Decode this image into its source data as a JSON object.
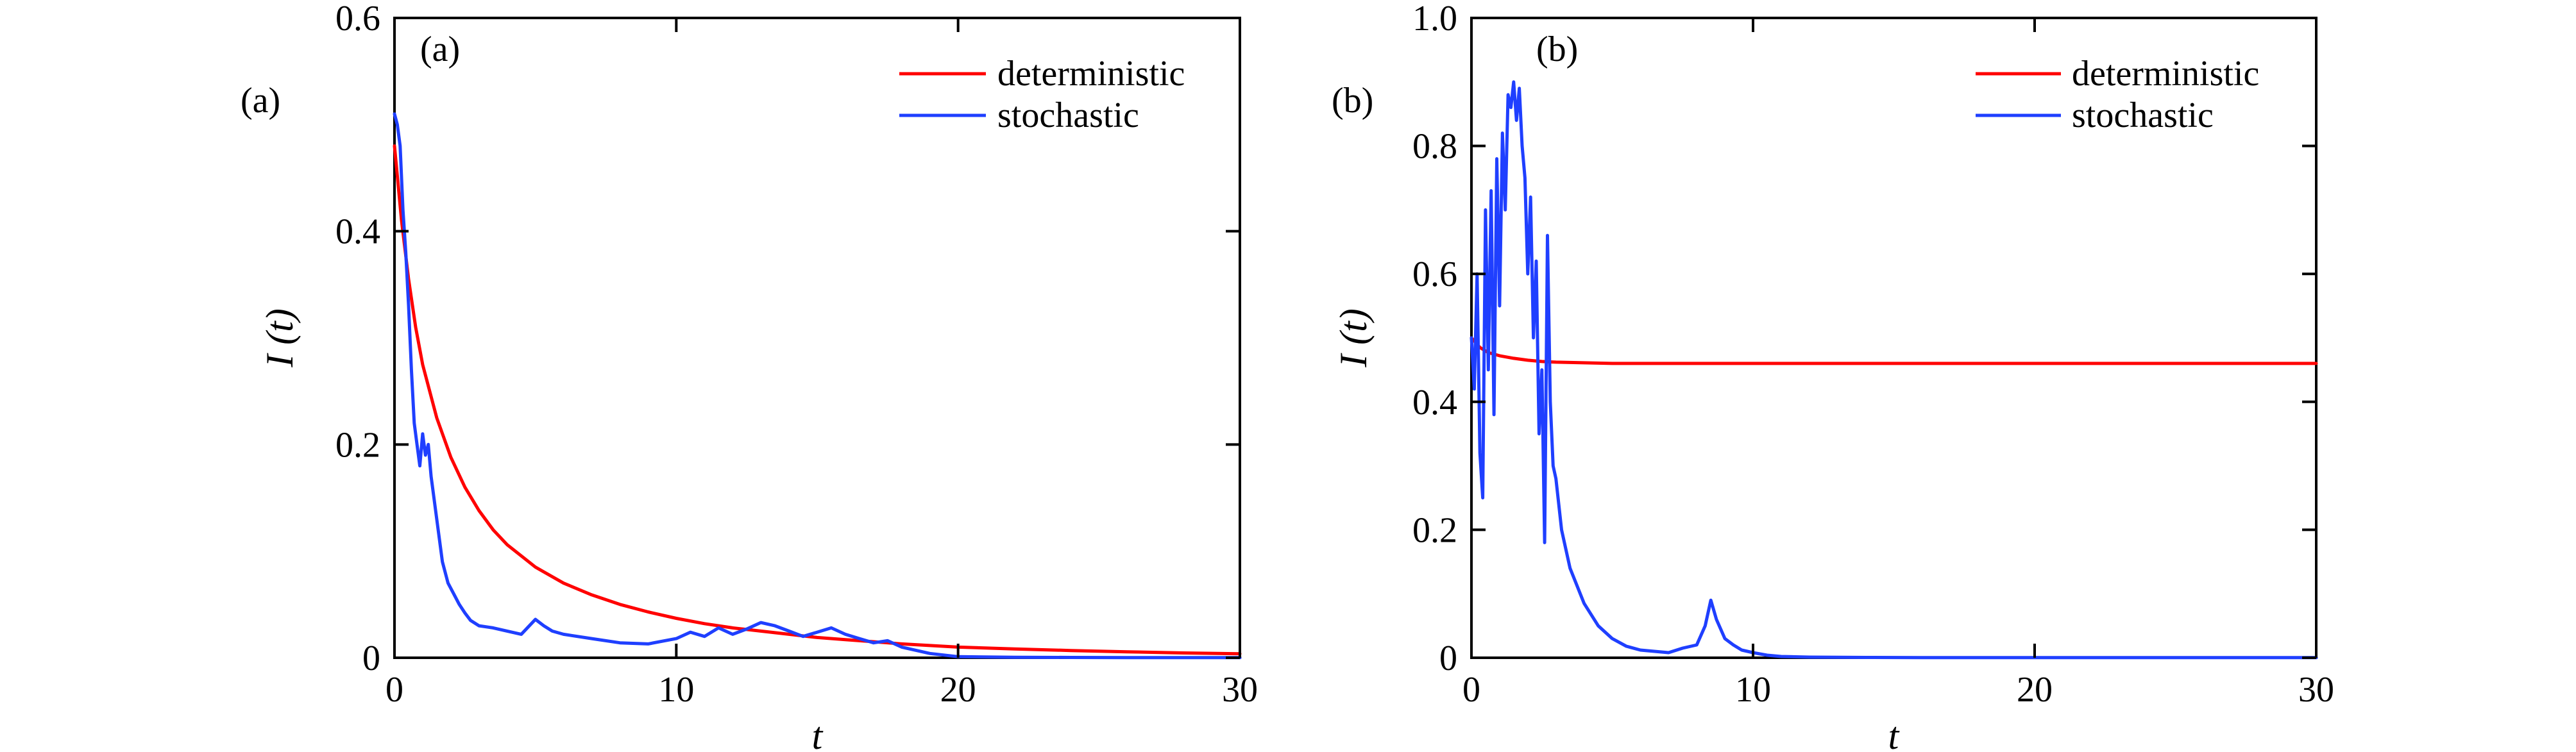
{
  "chart_data": [
    {
      "type": "line",
      "panel_label": "(a)",
      "inner_label": "(a)",
      "xlabel": "t",
      "ylabel": "I (t)",
      "xlim": [
        0,
        30
      ],
      "ylim": [
        0,
        0.6
      ],
      "xticks": [
        0,
        10,
        20,
        30
      ],
      "xtick_labels": [
        "0",
        "10",
        "20",
        "30"
      ],
      "yticks": [
        0,
        0.2,
        0.4,
        0.6
      ],
      "ytick_labels": [
        "0",
        "0.2",
        "0.4",
        "0.6"
      ],
      "legend_position": "top-right",
      "series": [
        {
          "name": "deterministic",
          "color": "#ff0000",
          "x": [
            0,
            0.25,
            0.5,
            0.75,
            1,
            1.5,
            2,
            2.5,
            3,
            3.5,
            4,
            5,
            6,
            7,
            8,
            9,
            10,
            11,
            12,
            13,
            14,
            15,
            16,
            17,
            18,
            19,
            20,
            22,
            24,
            26,
            28,
            30
          ],
          "y": [
            0.48,
            0.41,
            0.355,
            0.31,
            0.275,
            0.225,
            0.188,
            0.16,
            0.138,
            0.12,
            0.106,
            0.085,
            0.07,
            0.059,
            0.05,
            0.043,
            0.037,
            0.032,
            0.028,
            0.025,
            0.022,
            0.019,
            0.017,
            0.015,
            0.013,
            0.0115,
            0.01,
            0.0083,
            0.0068,
            0.0056,
            0.0045,
            0.0037
          ]
        },
        {
          "name": "stochastic",
          "color": "#1f3fff",
          "x": [
            0,
            0.1,
            0.2,
            0.3,
            0.4,
            0.5,
            0.6,
            0.7,
            0.8,
            0.9,
            1,
            1.1,
            1.2,
            1.3,
            1.5,
            1.7,
            1.9,
            2.1,
            2.3,
            2.5,
            2.7,
            3,
            3.5,
            4,
            4.5,
            5,
            5.3,
            5.6,
            6,
            7,
            8,
            9,
            10,
            10.5,
            11,
            11.5,
            12,
            12.5,
            13,
            13.5,
            14,
            14.5,
            15,
            15.5,
            16,
            16.5,
            17,
            17.5,
            18,
            19,
            20,
            22,
            24,
            26,
            28,
            30
          ],
          "y": [
            0.51,
            0.5,
            0.48,
            0.42,
            0.38,
            0.33,
            0.27,
            0.22,
            0.2,
            0.18,
            0.21,
            0.19,
            0.2,
            0.17,
            0.13,
            0.09,
            0.07,
            0.06,
            0.05,
            0.042,
            0.035,
            0.03,
            0.028,
            0.025,
            0.022,
            0.036,
            0.03,
            0.025,
            0.022,
            0.018,
            0.014,
            0.013,
            0.018,
            0.024,
            0.02,
            0.028,
            0.022,
            0.027,
            0.033,
            0.03,
            0.025,
            0.02,
            0.024,
            0.028,
            0.022,
            0.018,
            0.014,
            0.016,
            0.01,
            0.004,
            0.001,
            0.0005,
            0.0003,
            0.0002,
            0.0002,
            0.0002
          ]
        }
      ]
    },
    {
      "type": "line",
      "panel_label": "(b)",
      "inner_label": "(b)",
      "xlabel": "t",
      "ylabel": "I (t)",
      "xlim": [
        0,
        30
      ],
      "ylim": [
        0,
        1.0
      ],
      "xticks": [
        0,
        10,
        20,
        30
      ],
      "xtick_labels": [
        "0",
        "10",
        "20",
        "30"
      ],
      "yticks": [
        0,
        0.2,
        0.4,
        0.6,
        0.8,
        1.0
      ],
      "ytick_labels": [
        "0",
        "0.2",
        "0.4",
        "0.6",
        "0.8",
        "1.0"
      ],
      "legend_position": "top-right",
      "series": [
        {
          "name": "deterministic",
          "color": "#ff0000",
          "x": [
            0,
            0.3,
            0.6,
            1,
            1.5,
            2,
            2.5,
            3,
            4,
            5,
            10,
            20,
            30
          ],
          "y": [
            0.5,
            0.485,
            0.477,
            0.472,
            0.468,
            0.465,
            0.463,
            0.462,
            0.461,
            0.46,
            0.46,
            0.46,
            0.46
          ]
        },
        {
          "name": "stochastic",
          "color": "#1f3fff",
          "x": [
            0,
            0.1,
            0.2,
            0.3,
            0.4,
            0.5,
            0.6,
            0.7,
            0.8,
            0.9,
            1,
            1.1,
            1.2,
            1.3,
            1.4,
            1.5,
            1.6,
            1.7,
            1.8,
            1.9,
            2,
            2.1,
            2.2,
            2.3,
            2.4,
            2.5,
            2.6,
            2.7,
            2.8,
            2.9,
            3,
            3.2,
            3.5,
            4,
            4.5,
            5,
            5.5,
            6,
            6.5,
            7,
            7.5,
            8,
            8.3,
            8.5,
            8.7,
            9,
            9.3,
            9.6,
            10,
            10.5,
            11,
            12,
            14,
            16,
            20,
            25,
            30
          ],
          "y": [
            0.5,
            0.42,
            0.6,
            0.32,
            0.25,
            0.7,
            0.45,
            0.73,
            0.38,
            0.78,
            0.55,
            0.82,
            0.7,
            0.88,
            0.86,
            0.9,
            0.84,
            0.89,
            0.8,
            0.75,
            0.6,
            0.72,
            0.5,
            0.62,
            0.35,
            0.45,
            0.18,
            0.66,
            0.4,
            0.3,
            0.28,
            0.2,
            0.14,
            0.085,
            0.05,
            0.03,
            0.018,
            0.012,
            0.01,
            0.008,
            0.015,
            0.02,
            0.05,
            0.09,
            0.06,
            0.03,
            0.02,
            0.012,
            0.008,
            0.004,
            0.002,
            0.001,
            0.0005,
            0.0003,
            0.0002,
            0.0002,
            0.0002
          ]
        }
      ]
    }
  ]
}
